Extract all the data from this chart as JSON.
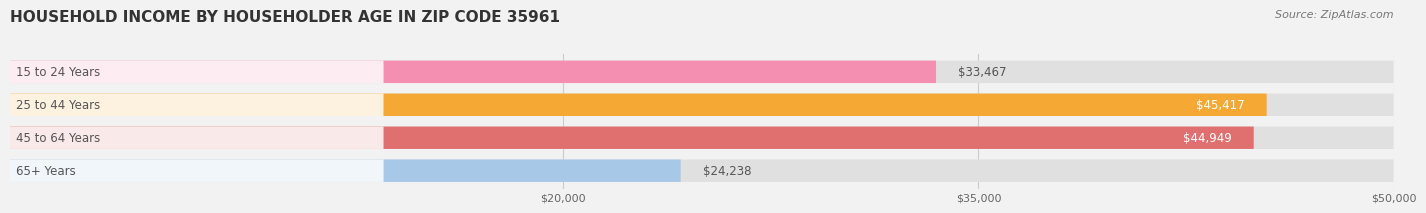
{
  "title": "HOUSEHOLD INCOME BY HOUSEHOLDER AGE IN ZIP CODE 35961",
  "source": "Source: ZipAtlas.com",
  "categories": [
    "15 to 24 Years",
    "25 to 44 Years",
    "45 to 64 Years",
    "65+ Years"
  ],
  "values": [
    33467,
    45417,
    44949,
    24238
  ],
  "bar_colors": [
    "#F48FB1",
    "#F5A833",
    "#E07070",
    "#A8C8E8"
  ],
  "label_colors": [
    "#555555",
    "#555555",
    "#555555",
    "#555555"
  ],
  "value_colors_inside": [
    "#555555",
    "#ffffff",
    "#ffffff",
    "#555555"
  ],
  "value_inside": [
    false,
    true,
    true,
    false
  ],
  "background_color": "#f2f2f2",
  "bar_bg_color": "#e0e0e0",
  "xlim_data": [
    0,
    50000
  ],
  "xlim_display": [
    0,
    50000
  ],
  "xticks": [
    20000,
    35000,
    50000
  ],
  "xticklabels": [
    "$20,000",
    "$35,000",
    "$50,000"
  ],
  "title_fontsize": 11,
  "source_fontsize": 8,
  "label_fontsize": 8.5,
  "value_fontsize": 8.5
}
